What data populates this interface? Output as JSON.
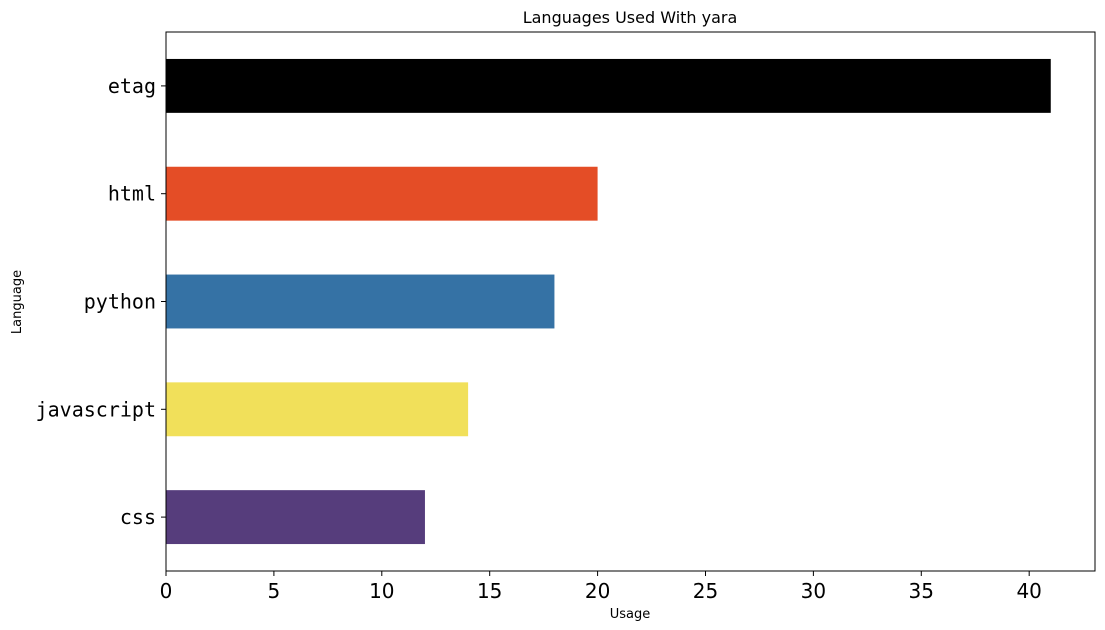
{
  "chart_data": {
    "type": "bar",
    "orientation": "horizontal",
    "title": "Languages Used With yara",
    "xlabel": "Usage",
    "ylabel": "Language",
    "xlim": [
      0,
      43.05
    ],
    "x_ticks": [
      0,
      5,
      10,
      15,
      20,
      25,
      30,
      35,
      40
    ],
    "categories": [
      "etag",
      "html",
      "python",
      "javascript",
      "css"
    ],
    "values": [
      41,
      20,
      18,
      14,
      12
    ],
    "colors": [
      "#000000",
      "#e44d26",
      "#3572a5",
      "#f1e05a",
      "#563d7c"
    ],
    "grid": false,
    "legend": "none"
  }
}
